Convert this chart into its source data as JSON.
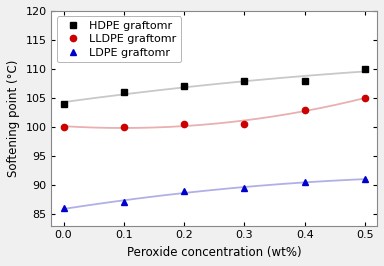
{
  "x": [
    0.0,
    0.1,
    0.2,
    0.3,
    0.4,
    0.5
  ],
  "hdpe": [
    104.0,
    106.0,
    107.0,
    108.0,
    108.0,
    110.0
  ],
  "lldpe": [
    100.0,
    100.0,
    100.5,
    100.5,
    103.0,
    105.0
  ],
  "ldpe": [
    86.0,
    87.0,
    89.0,
    89.5,
    90.5,
    91.0
  ],
  "hdpe_label": "HDPE graftomr",
  "lldpe_label": "LLDPE graftomr",
  "ldpe_label": "LDPE graftomr",
  "hdpe_marker_color": "black",
  "lldpe_marker_color": "#cc0000",
  "ldpe_marker_color": "#0000cc",
  "hdpe_line_color": "#c8c8c8",
  "lldpe_line_color": "#e8b0b0",
  "ldpe_line_color": "#b0b0e8",
  "xlabel": "Peroxide concentration (wt%)",
  "ylabel": "Softening point (°C)",
  "ylim": [
    83,
    120
  ],
  "xlim": [
    -0.02,
    0.52
  ],
  "yticks": [
    85,
    90,
    95,
    100,
    105,
    110,
    115,
    120
  ],
  "xticks": [
    0.0,
    0.1,
    0.2,
    0.3,
    0.4,
    0.5
  ],
  "axis_fontsize": 8.5,
  "tick_fontsize": 8,
  "legend_fontsize": 8,
  "fig_bg_color": "#f0f0f0",
  "axes_bg_color": "#ffffff"
}
